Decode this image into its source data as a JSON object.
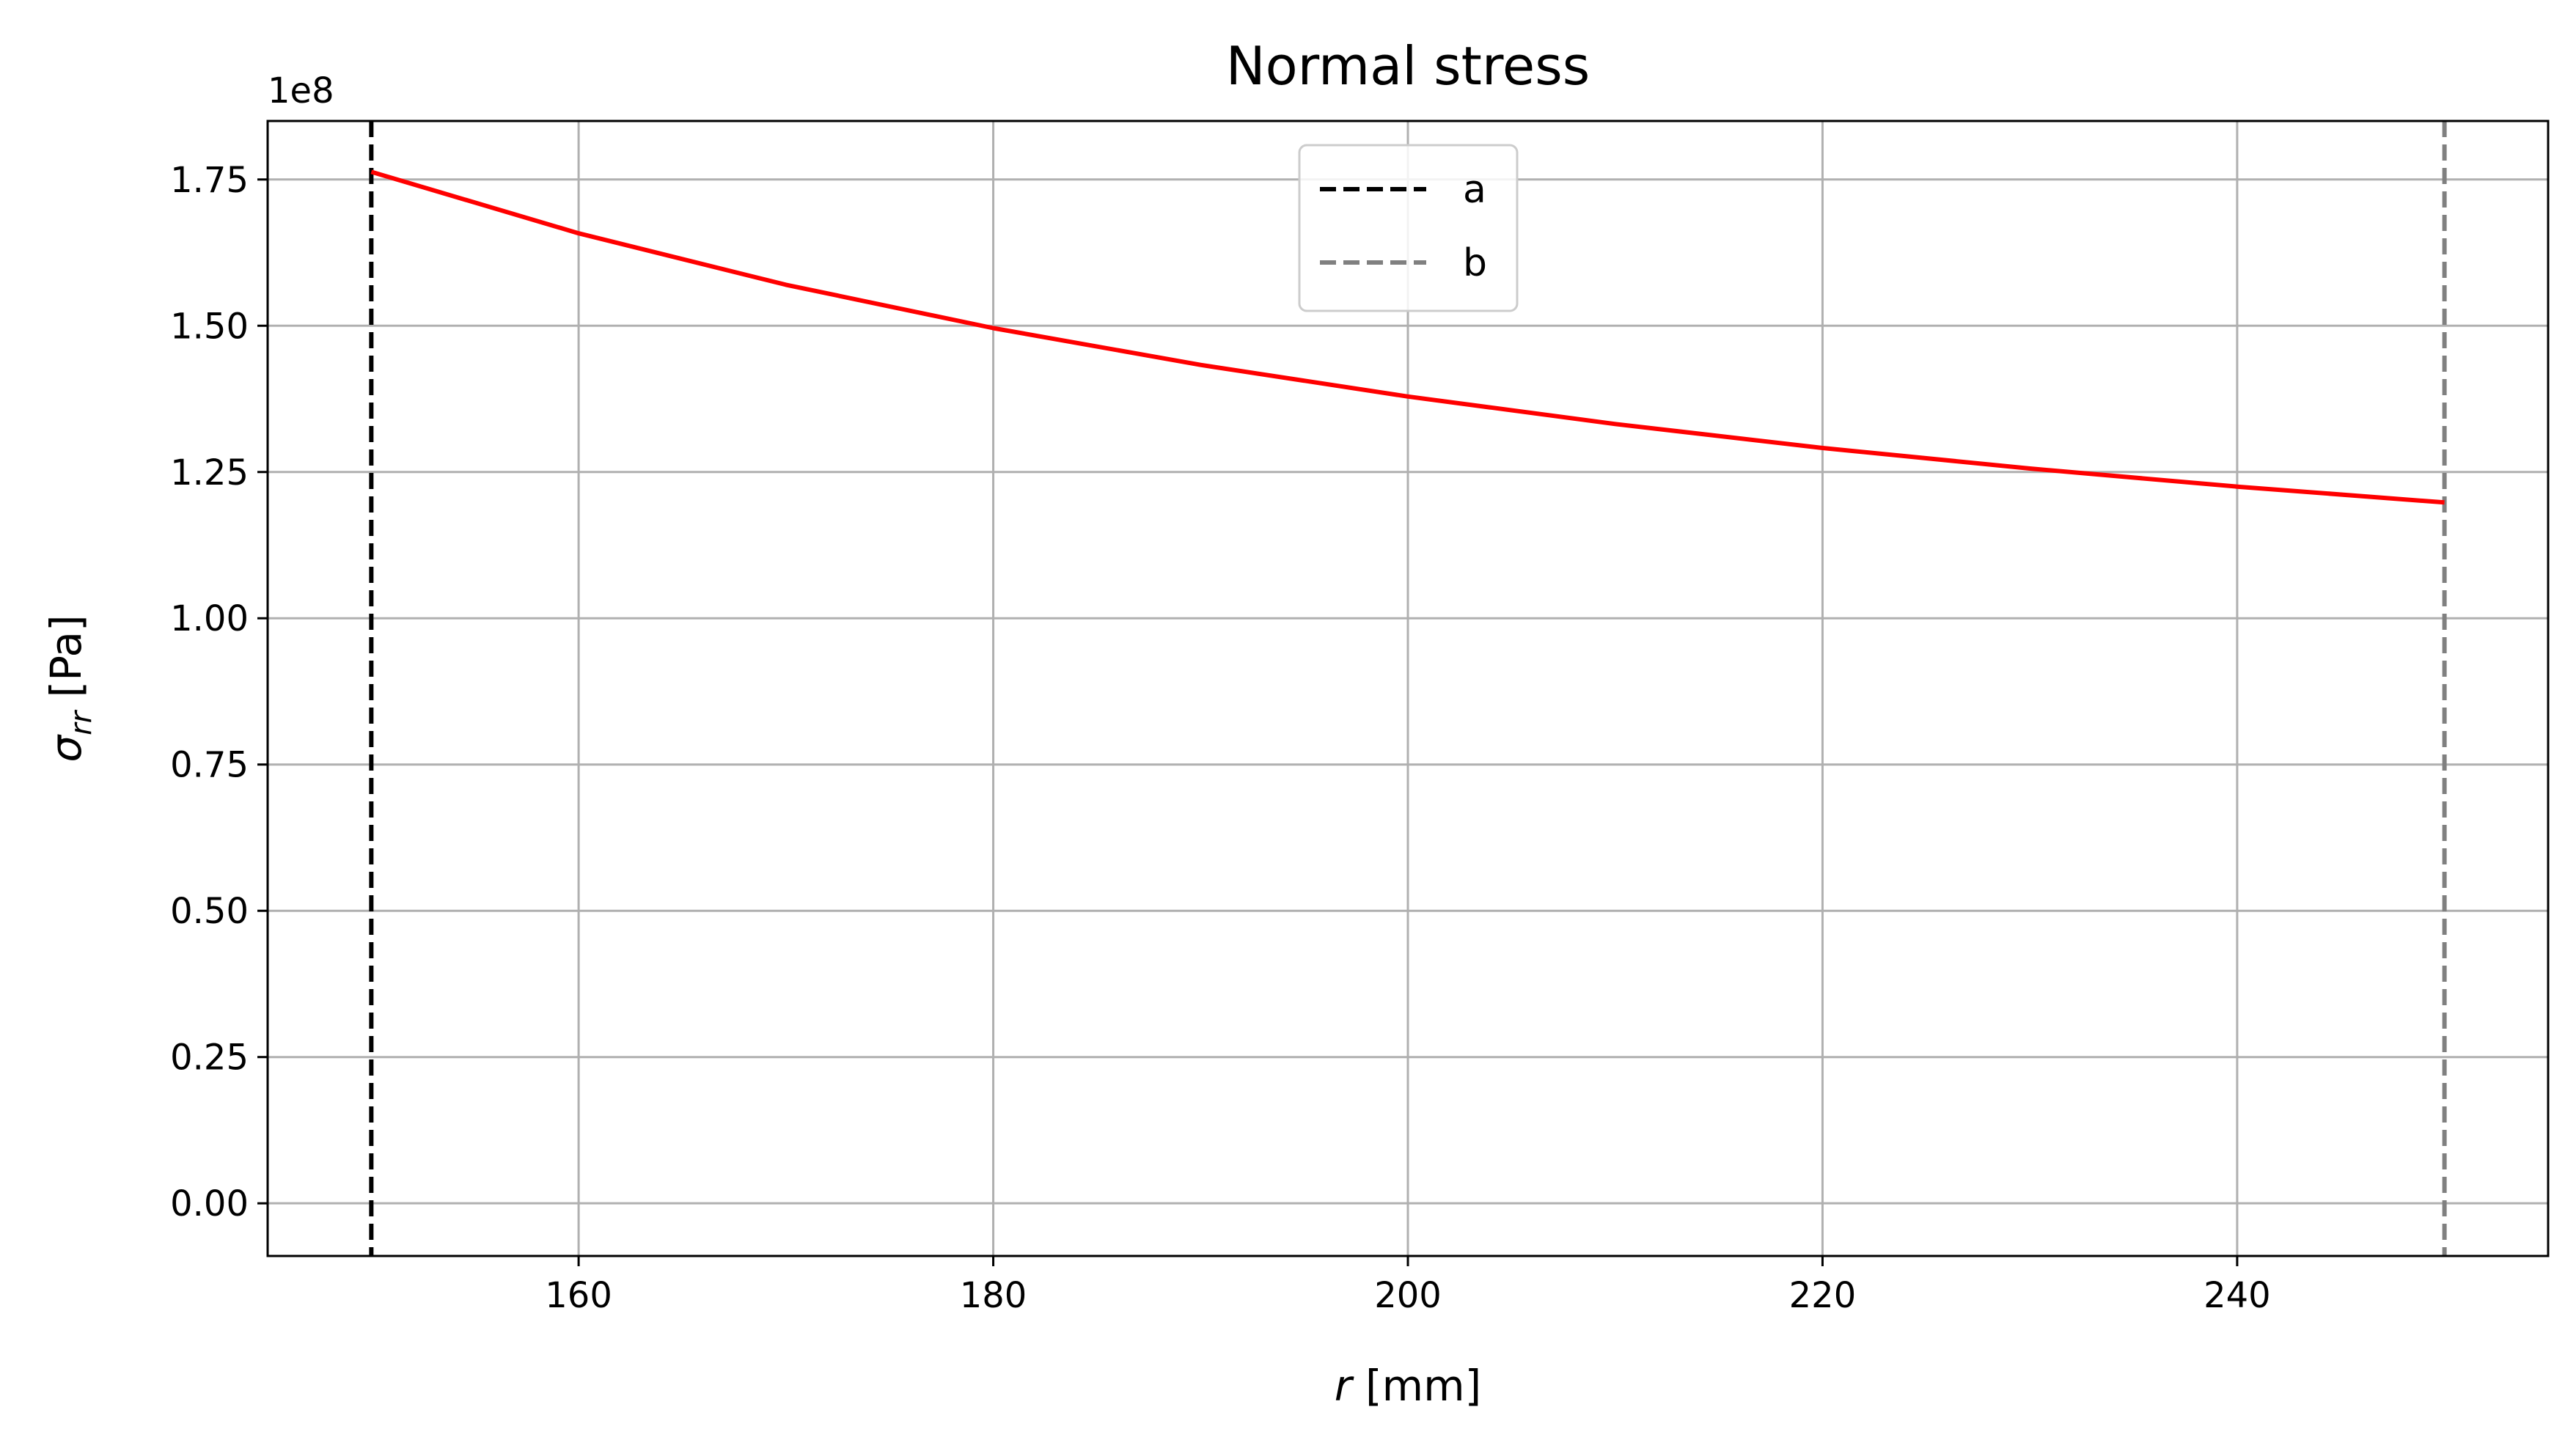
{
  "chart_data": {
    "type": "line",
    "title": "Normal stress",
    "xlabel": {
      "var": "r",
      "unit": " [mm]"
    },
    "ylabel": {
      "var": "σ",
      "sub": "rr",
      "unit": " [Pa]"
    },
    "y_offset_label": "1e8",
    "xlim": [
      145,
      255
    ],
    "ylim": [
      -0.09,
      1.85
    ],
    "y_scale": 100000000.0,
    "xticks": [
      160,
      180,
      200,
      220,
      240
    ],
    "xtick_labels": [
      "160",
      "180",
      "200",
      "220",
      "240"
    ],
    "yticks": [
      0,
      0.25,
      0.5,
      0.75,
      1.0,
      1.25,
      1.5,
      1.75
    ],
    "ytick_labels": [
      "0.00",
      "0.25",
      "0.50",
      "0.75",
      "1.00",
      "1.25",
      "1.50",
      "1.75"
    ],
    "grid": true,
    "legend_placement": "upper center",
    "series": [
      {
        "color": "#ff0000",
        "x": [
          150,
          160,
          170,
          180,
          190,
          200,
          210,
          220,
          230,
          240,
          250
        ],
        "y": [
          1.763,
          1.658,
          1.57,
          1.496,
          1.433,
          1.379,
          1.332,
          1.291,
          1.256,
          1.225,
          1.198
        ]
      }
    ],
    "vlines": [
      {
        "name": "a",
        "x": 150,
        "color": "#000000"
      },
      {
        "name": "b",
        "x": 250,
        "color": "#808080"
      }
    ]
  }
}
